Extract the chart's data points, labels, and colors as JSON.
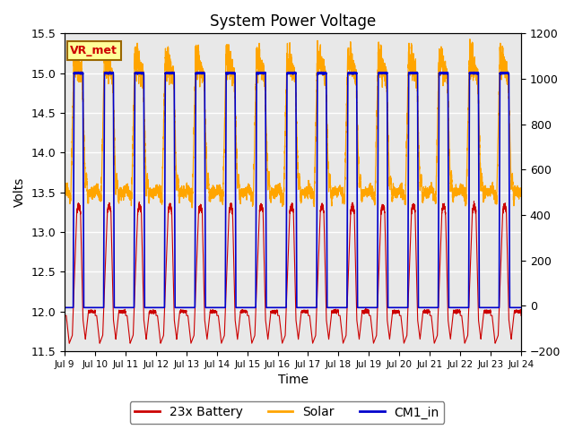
{
  "title": "System Power Voltage",
  "xlabel": "Time",
  "ylabel": "Volts",
  "ylim": [
    11.5,
    15.5
  ],
  "ylim2": [
    -200,
    1200
  ],
  "yticks": [
    11.5,
    12.0,
    12.5,
    13.0,
    13.5,
    14.0,
    14.5,
    15.0,
    15.5
  ],
  "yticks2": [
    -200,
    0,
    200,
    400,
    600,
    800,
    1000,
    1200
  ],
  "xtick_labels": [
    "Jul 9",
    "Jul 10",
    "Jul 11",
    "Jul 12",
    "Jul 13",
    "Jul 14",
    "Jul 15",
    "Jul 16",
    "Jul 17",
    "Jul 18",
    "Jul 19",
    "Jul 20",
    "Jul 21",
    "Jul 22",
    "Jul 23",
    "Jul 24"
  ],
  "color_battery": "#cc0000",
  "color_solar": "#ffa500",
  "color_cm1": "#0000cc",
  "legend_labels": [
    "23x Battery",
    "Solar",
    "CM1_in"
  ],
  "annotation_text": "VR_met",
  "annotation_color": "#cc0000",
  "annotation_bg": "#ffff99",
  "annotation_border": "#996600",
  "background_color": "#e8e8e8",
  "grid_color": "#ffffff",
  "title_fontsize": 12,
  "axis_fontsize": 10,
  "tick_fontsize": 9,
  "legend_fontsize": 10
}
